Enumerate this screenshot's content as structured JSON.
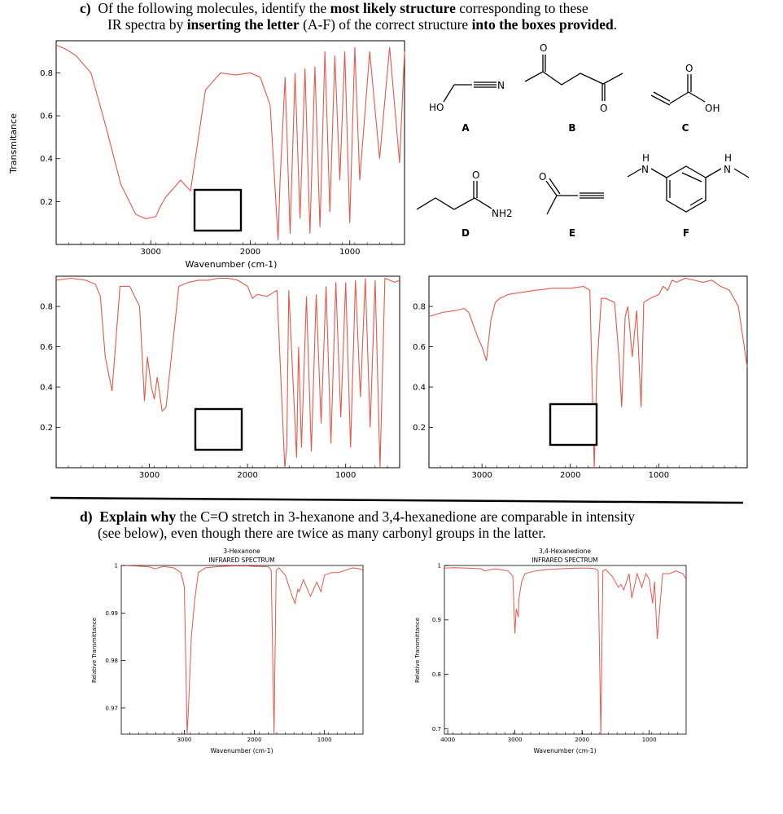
{
  "question_c": {
    "label": "c)",
    "line1": [
      "Of the following molecules, identify the ",
      "most likely structure",
      " corresponding to these"
    ],
    "line2": [
      "IR spectra by ",
      "inserting the letter",
      " (A-F) of the correct structure ",
      "into the boxes provided",
      "."
    ]
  },
  "question_d": {
    "label": "d)",
    "line1": [
      "Explain why",
      " the C=O stretch in 3-hexanone and 3,4-hexanedione are comparable in intensity"
    ],
    "line2": "(see below), even though there are twice as many carbonyl groups in the latter."
  },
  "molecules": {
    "labels": [
      "A",
      "B",
      "C",
      "D",
      "E",
      "F"
    ],
    "atoms": {
      "ho": "HO",
      "n": "N",
      "oh": "OH",
      "nh2": "NH2",
      "o": "O",
      "nh": "N",
      "h": "H"
    }
  },
  "colors": {
    "spectrum": "#e8564a",
    "axis": "#000000",
    "hline": "#000000"
  },
  "chart_data": [
    {
      "type": "line",
      "id": "spectrum-1",
      "ylabel": "Transmitance",
      "xlabel": "Wavenumber (cm-1)",
      "x_ticks": [
        "3000",
        "2000",
        "1000"
      ],
      "y_ticks": [
        "0.8",
        "0.6",
        "0.4",
        "0.2"
      ],
      "xlim": [
        3950,
        450
      ],
      "ylim": [
        0,
        0.95
      ],
      "x_reversed": true,
      "answer_box": "",
      "x": [
        3950,
        3850,
        3750,
        3600,
        3450,
        3300,
        3150,
        3050,
        2950,
        2900,
        2850,
        2700,
        2600,
        2450,
        2300,
        2150,
        2000,
        1900,
        1800,
        1720,
        1700,
        1650,
        1600,
        1550,
        1500,
        1450,
        1400,
        1350,
        1300,
        1250,
        1200,
        1150,
        1100,
        1050,
        1000,
        950,
        900,
        800,
        700,
        600,
        500,
        450
      ],
      "y": [
        0.93,
        0.91,
        0.88,
        0.8,
        0.55,
        0.28,
        0.14,
        0.12,
        0.13,
        0.18,
        0.22,
        0.3,
        0.25,
        0.72,
        0.8,
        0.79,
        0.8,
        0.78,
        0.65,
        0.02,
        0.3,
        0.78,
        0.05,
        0.8,
        0.12,
        0.82,
        0.05,
        0.83,
        0.08,
        0.9,
        0.15,
        0.88,
        0.3,
        0.9,
        0.1,
        0.92,
        0.3,
        0.9,
        0.4,
        0.92,
        0.38,
        0.9
      ]
    },
    {
      "type": "line",
      "id": "spectrum-2",
      "x_ticks": [
        "3000",
        "2000",
        "1000"
      ],
      "y_ticks": [
        "0.8",
        "0.6",
        "0.4",
        "0.2"
      ],
      "xlim": [
        3950,
        450
      ],
      "ylim": [
        0,
        0.95
      ],
      "x_reversed": true,
      "answer_box": "",
      "x": [
        3950,
        3800,
        3650,
        3550,
        3500,
        3450,
        3380,
        3300,
        3200,
        3100,
        3050,
        3020,
        2980,
        2950,
        2920,
        2870,
        2830,
        2700,
        2600,
        2500,
        2400,
        2300,
        2200,
        2100,
        2000,
        1950,
        1900,
        1800,
        1700,
        1620,
        1600,
        1580,
        1500,
        1480,
        1450,
        1400,
        1350,
        1300,
        1250,
        1200,
        1150,
        1100,
        1050,
        1000,
        950,
        900,
        850,
        800,
        750,
        700,
        650,
        600,
        500,
        450
      ],
      "y": [
        0.93,
        0.94,
        0.93,
        0.91,
        0.85,
        0.55,
        0.38,
        0.9,
        0.9,
        0.8,
        0.33,
        0.55,
        0.4,
        0.34,
        0.45,
        0.28,
        0.3,
        0.9,
        0.92,
        0.93,
        0.93,
        0.94,
        0.94,
        0.93,
        0.9,
        0.84,
        0.86,
        0.85,
        0.88,
        0.0,
        0.1,
        0.88,
        0.05,
        0.6,
        0.1,
        0.85,
        0.08,
        0.86,
        0.22,
        0.9,
        0.12,
        0.92,
        0.25,
        0.92,
        0.1,
        0.93,
        0.35,
        0.94,
        0.2,
        0.93,
        0.0,
        0.94,
        0.92,
        0.93
      ]
    },
    {
      "type": "line",
      "id": "spectrum-3",
      "x_ticks": [
        "3000",
        "2000",
        "1000"
      ],
      "y_ticks": [
        "0.8",
        "0.6",
        "0.4",
        "0.2"
      ],
      "xlim": [
        3600,
        0
      ],
      "ylim": [
        0,
        0.95
      ],
      "x_reversed": true,
      "answer_box": "",
      "x": [
        3600,
        3450,
        3300,
        3200,
        3150,
        3050,
        3000,
        2950,
        2900,
        2850,
        2800,
        2700,
        2550,
        2400,
        2200,
        2000,
        1850,
        1780,
        1730,
        1700,
        1650,
        1600,
        1500,
        1450,
        1420,
        1380,
        1350,
        1300,
        1250,
        1200,
        1170,
        1100,
        1000,
        950,
        900,
        850,
        800,
        700,
        600,
        500,
        400,
        300,
        200,
        100,
        0
      ],
      "y": [
        0.75,
        0.77,
        0.78,
        0.79,
        0.77,
        0.65,
        0.6,
        0.53,
        0.73,
        0.82,
        0.84,
        0.86,
        0.87,
        0.88,
        0.89,
        0.89,
        0.9,
        0.88,
        0.0,
        0.5,
        0.84,
        0.84,
        0.82,
        0.55,
        0.3,
        0.75,
        0.8,
        0.55,
        0.78,
        0.3,
        0.82,
        0.84,
        0.86,
        0.9,
        0.88,
        0.93,
        0.92,
        0.94,
        0.93,
        0.92,
        0.93,
        0.9,
        0.88,
        0.8,
        0.5
      ]
    },
    {
      "type": "line",
      "id": "spectrum-hexanone",
      "title": "3-Hexanone",
      "subtitle": "INFRARED SPECTRUM",
      "ylabel": "Relative Transmittance",
      "xlabel": "Wavenumber (cm-1)",
      "x_ticks": [
        "3000",
        "2000",
        "1000"
      ],
      "y_ticks": [
        "1",
        "0.99",
        "0.98",
        "0.97"
      ],
      "xlim": [
        3900,
        450
      ],
      "ylim": [
        0.9645,
        1.0
      ],
      "x_reversed": true,
      "x": [
        3900,
        3700,
        3500,
        3420,
        3300,
        3150,
        3050,
        3000,
        2960,
        2940,
        2900,
        2850,
        2800,
        2700,
        2500,
        2300,
        2100,
        2000,
        1900,
        1800,
        1760,
        1720,
        1690,
        1650,
        1560,
        1460,
        1420,
        1380,
        1360,
        1300,
        1200,
        1110,
        1050,
        1000,
        900,
        800,
        700,
        600,
        500,
        450
      ],
      "y": [
        1.0,
        0.9999,
        0.9997,
        0.9993,
        0.9998,
        0.9995,
        0.9985,
        0.9955,
        0.9645,
        0.97,
        0.985,
        0.993,
        0.9985,
        0.9995,
        0.9998,
        0.9999,
        0.9999,
        0.9998,
        0.9998,
        0.9997,
        0.999,
        0.9645,
        0.999,
        0.9995,
        0.998,
        0.9935,
        0.992,
        0.995,
        0.9945,
        0.997,
        0.9935,
        0.9965,
        0.9945,
        0.998,
        0.9985,
        0.9985,
        0.999,
        0.9995,
        0.9993,
        0.999
      ]
    },
    {
      "type": "line",
      "id": "spectrum-hexanedione",
      "title": "3,4-Hexanedione",
      "subtitle": "INFRARED SPECTRUM",
      "ylabel": "Relative Transmittance",
      "xlabel": "Wavenumber (cm-1)",
      "x_ticks": [
        "4000",
        "3000",
        "2000",
        "1000"
      ],
      "y_ticks": [
        "1",
        "0.9",
        "0.8",
        "0.7"
      ],
      "xlim": [
        4050,
        450
      ],
      "ylim": [
        0.69,
        1.0
      ],
      "x_reversed": true,
      "x": [
        4050,
        3900,
        3700,
        3500,
        3450,
        3300,
        3100,
        3030,
        3000,
        2980,
        2950,
        2940,
        2900,
        2850,
        2700,
        2500,
        2300,
        2100,
        1900,
        1800,
        1760,
        1720,
        1690,
        1650,
        1550,
        1460,
        1420,
        1380,
        1300,
        1260,
        1180,
        1110,
        1050,
        1000,
        950,
        920,
        880,
        800,
        700,
        600,
        500,
        450
      ],
      "y": [
        0.995,
        0.996,
        0.995,
        0.994,
        0.99,
        0.994,
        0.99,
        0.98,
        0.875,
        0.92,
        0.905,
        0.94,
        0.97,
        0.985,
        0.99,
        0.993,
        0.994,
        0.995,
        0.995,
        0.994,
        0.99,
        0.69,
        0.99,
        0.993,
        0.98,
        0.96,
        0.965,
        0.955,
        0.985,
        0.94,
        0.985,
        0.96,
        0.985,
        0.975,
        0.93,
        0.97,
        0.865,
        0.985,
        0.985,
        0.99,
        0.985,
        0.975
      ]
    }
  ]
}
